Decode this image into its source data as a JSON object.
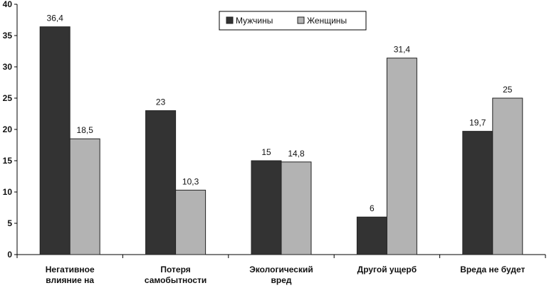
{
  "chart_data": {
    "type": "bar",
    "categories": [
      [
        "Негативное",
        "влияние на"
      ],
      [
        "Потеря",
        "самобытности"
      ],
      [
        "Экологический",
        "вред"
      ],
      [
        "Другой ущерб"
      ],
      [
        "Вреда не будет"
      ]
    ],
    "series": [
      {
        "name": "Мужчины",
        "values": [
          36.4,
          23,
          15,
          6,
          19.7
        ],
        "labels": [
          "36,4",
          "23",
          "15",
          "6",
          "19,7"
        ],
        "color": "#333333"
      },
      {
        "name": "Женщины",
        "values": [
          18.5,
          10.3,
          14.8,
          31.4,
          25
        ],
        "labels": [
          "18,5",
          "10,3",
          "14,8",
          "31,4",
          "25"
        ],
        "color": "#b3b3b3"
      }
    ],
    "ylim": [
      0,
      40
    ],
    "yticks": [
      "0",
      "5",
      "10",
      "15",
      "20",
      "25",
      "30",
      "35",
      "40"
    ],
    "grid": false,
    "legend": "top-center"
  }
}
